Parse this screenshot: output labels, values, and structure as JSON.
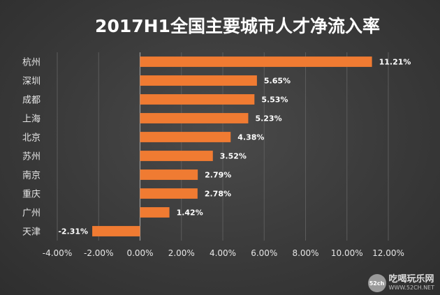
{
  "chart_data": {
    "type": "bar",
    "orientation": "horizontal",
    "title": "2017H1全国主要城市人才净流入率",
    "categories": [
      "杭州",
      "深圳",
      "成都",
      "上海",
      "北京",
      "苏州",
      "南京",
      "重庆",
      "广州",
      "天津"
    ],
    "values": [
      11.21,
      5.65,
      5.53,
      5.23,
      4.38,
      3.52,
      2.79,
      2.78,
      1.42,
      -2.31
    ],
    "value_labels": [
      "11.21%",
      "5.65%",
      "5.53%",
      "5.23%",
      "4.38%",
      "3.52%",
      "2.79%",
      "2.78%",
      "1.42%",
      "-2.31%"
    ],
    "xlim": [
      -4,
      12
    ],
    "xticks": [
      -4,
      -2,
      0,
      2,
      4,
      6,
      8,
      10,
      12
    ],
    "xtick_labels": [
      "-4.00%",
      "-2.00%",
      "0.00%",
      "2.00%",
      "4.00%",
      "6.00%",
      "8.00%",
      "10.00%",
      "12.00%"
    ],
    "grid": true,
    "legend": "none",
    "bar_color": "#f07b32",
    "background_color": "#3d3d3d",
    "text_color": "#e6e6e6"
  },
  "watermark": {
    "badge": "52ch",
    "brand": "吃喝玩乐网",
    "url": "WWW.52CH.NET"
  }
}
